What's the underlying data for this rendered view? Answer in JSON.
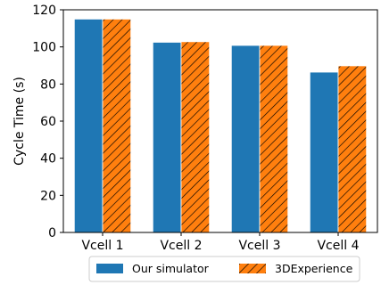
{
  "chart_data": {
    "type": "bar",
    "title": "",
    "xlabel": "",
    "ylabel": "Cycle Time (s)",
    "categories": [
      "Vcell 1",
      "Vcell 2",
      "Vcell 3",
      "Vcell 4"
    ],
    "ylim": [
      0,
      120
    ],
    "yticks": [
      0,
      20,
      40,
      60,
      80,
      100,
      120
    ],
    "grid": false,
    "legend_position": "bottom-center",
    "series": [
      {
        "name": "Our simulator",
        "values": [
          115.0,
          102.5,
          100.8,
          86.4
        ],
        "color": "#1f77b4",
        "pattern": "solid"
      },
      {
        "name": "3DExperience",
        "values": [
          115.0,
          102.8,
          100.8,
          89.8
        ],
        "color": "#ff7f0e",
        "pattern": "hatch"
      }
    ]
  }
}
